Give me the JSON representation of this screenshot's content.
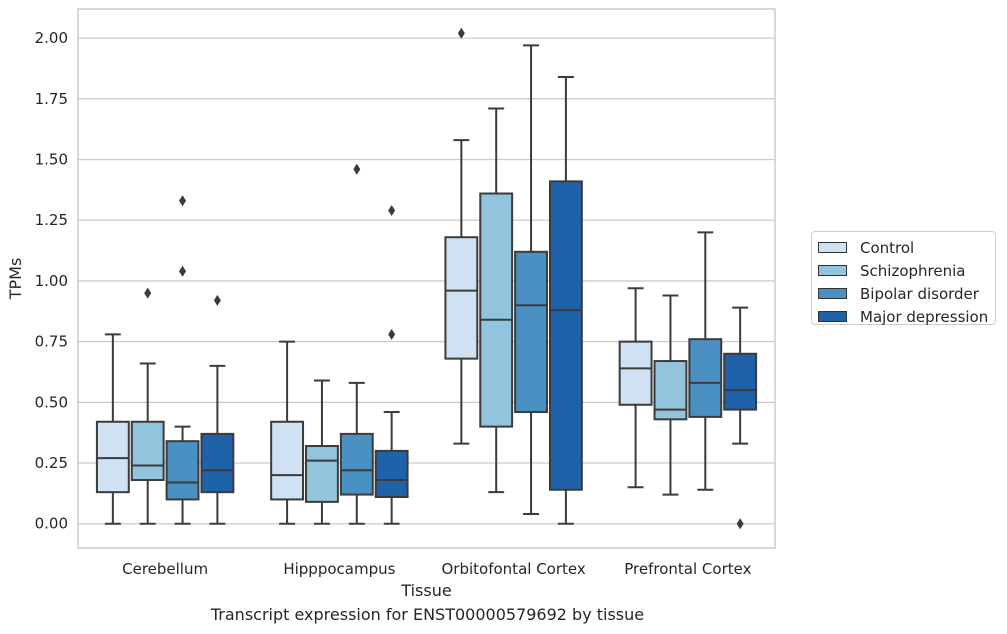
{
  "chart_data": {
    "type": "box",
    "title": "",
    "caption": "Transcript expression for ENST00000579692 by tissue",
    "xlabel": "Tissue",
    "ylabel": "TPMs",
    "ylim": [
      -0.1,
      2.12
    ],
    "yticks": [
      "0.00",
      "0.25",
      "0.50",
      "0.75",
      "1.00",
      "1.25",
      "1.50",
      "1.75",
      "2.00"
    ],
    "grid": "horizontal",
    "legend_position": "right",
    "categories": [
      "Cerebellum",
      "Hipppocampus",
      "Orbitofontal Cortex",
      "Prefrontal Cortex"
    ],
    "series": [
      {
        "name": "Control",
        "color": "#cfe1f2",
        "boxes": [
          {
            "whislo": 0.0,
            "q1": 0.13,
            "med": 0.27,
            "q3": 0.42,
            "whishi": 0.78,
            "fliers": []
          },
          {
            "whislo": 0.0,
            "q1": 0.1,
            "med": 0.2,
            "q3": 0.42,
            "whishi": 0.75,
            "fliers": []
          },
          {
            "whislo": 0.33,
            "q1": 0.68,
            "med": 0.96,
            "q3": 1.18,
            "whishi": 1.58,
            "fliers": [
              2.02
            ]
          },
          {
            "whislo": 0.15,
            "q1": 0.49,
            "med": 0.64,
            "q3": 0.75,
            "whishi": 0.97,
            "fliers": []
          }
        ]
      },
      {
        "name": "Schizophrenia",
        "color": "#93c4de",
        "boxes": [
          {
            "whislo": 0.0,
            "q1": 0.18,
            "med": 0.24,
            "q3": 0.42,
            "whishi": 0.66,
            "fliers": [
              0.95
            ]
          },
          {
            "whislo": 0.0,
            "q1": 0.09,
            "med": 0.26,
            "q3": 0.32,
            "whishi": 0.59,
            "fliers": []
          },
          {
            "whislo": 0.13,
            "q1": 0.4,
            "med": 0.84,
            "q3": 1.36,
            "whishi": 1.71,
            "fliers": []
          },
          {
            "whislo": 0.12,
            "q1": 0.43,
            "med": 0.47,
            "q3": 0.67,
            "whishi": 0.94,
            "fliers": []
          }
        ]
      },
      {
        "name": "Bipolar disorder",
        "color": "#4a90c2",
        "boxes": [
          {
            "whislo": 0.0,
            "q1": 0.1,
            "med": 0.17,
            "q3": 0.34,
            "whishi": 0.4,
            "fliers": [
              1.04,
              1.33
            ]
          },
          {
            "whislo": 0.0,
            "q1": 0.12,
            "med": 0.22,
            "q3": 0.37,
            "whishi": 0.58,
            "fliers": [
              1.46
            ]
          },
          {
            "whislo": 0.04,
            "q1": 0.46,
            "med": 0.9,
            "q3": 1.12,
            "whishi": 1.97,
            "fliers": []
          },
          {
            "whislo": 0.14,
            "q1": 0.44,
            "med": 0.58,
            "q3": 0.76,
            "whishi": 1.2,
            "fliers": []
          }
        ]
      },
      {
        "name": "Major depression",
        "color": "#2062aa",
        "boxes": [
          {
            "whislo": 0.0,
            "q1": 0.13,
            "med": 0.22,
            "q3": 0.37,
            "whishi": 0.65,
            "fliers": [
              0.92
            ]
          },
          {
            "whislo": 0.0,
            "q1": 0.11,
            "med": 0.18,
            "q3": 0.3,
            "whishi": 0.46,
            "fliers": [
              0.78,
              1.29
            ]
          },
          {
            "whislo": 0.0,
            "q1": 0.14,
            "med": 0.88,
            "q3": 1.41,
            "whishi": 1.84,
            "fliers": []
          },
          {
            "whislo": 0.33,
            "q1": 0.47,
            "med": 0.55,
            "q3": 0.7,
            "whishi": 0.89,
            "fliers": [
              0.0
            ]
          }
        ]
      }
    ]
  }
}
